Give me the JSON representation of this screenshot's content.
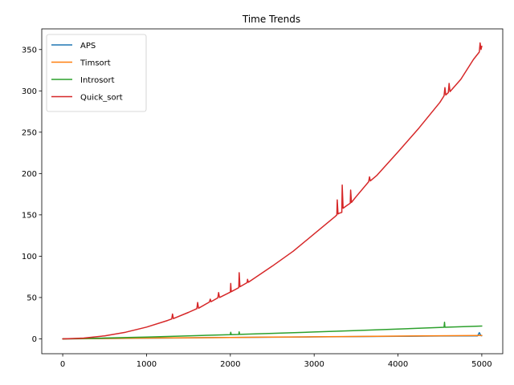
{
  "chart_data": {
    "type": "line",
    "title": "Time Trends",
    "xlabel": "",
    "ylabel": "",
    "xlim": [
      -250,
      5250
    ],
    "ylim": [
      -18,
      375
    ],
    "xticks": [
      0,
      1000,
      2000,
      3000,
      4000,
      5000
    ],
    "yticks": [
      0,
      50,
      100,
      150,
      200,
      250,
      300,
      350
    ],
    "grid": false,
    "legend_position": "top-left",
    "series": [
      {
        "name": "APS",
        "color": "#1f77b4",
        "x": [
          0,
          500,
          1000,
          1500,
          2000,
          2500,
          3000,
          3500,
          4000,
          4500,
          4950,
          4970,
          4990,
          5000
        ],
        "y": [
          0,
          0.3,
          0.8,
          1.2,
          1.6,
          2.0,
          2.4,
          2.8,
          3.1,
          3.4,
          3.6,
          7.5,
          3.8,
          3.7
        ]
      },
      {
        "name": "Timsort",
        "color": "#ff7f0e",
        "x": [
          0,
          500,
          1000,
          1500,
          2000,
          2500,
          3000,
          3500,
          4000,
          4500,
          5000
        ],
        "y": [
          0,
          0.4,
          0.9,
          1.3,
          1.7,
          2.1,
          2.5,
          2.9,
          3.3,
          3.7,
          4.0
        ]
      },
      {
        "name": "Introsort",
        "color": "#2ca02c",
        "x": [
          0,
          500,
          1000,
          1500,
          2000,
          2005,
          2010,
          2100,
          2105,
          2110,
          2500,
          3000,
          3500,
          4000,
          4500,
          4550,
          4555,
          4560,
          5000
        ],
        "y": [
          0,
          1.0,
          2.2,
          3.6,
          5.0,
          8.0,
          5.0,
          5.3,
          8.5,
          5.4,
          6.6,
          8.3,
          10.0,
          11.8,
          13.8,
          14.0,
          20.0,
          14.0,
          15.5
        ]
      },
      {
        "name": "Quick_sort",
        "color": "#d62728",
        "x": [
          0,
          250,
          500,
          750,
          1000,
          1250,
          1300,
          1310,
          1320,
          1500,
          1600,
          1610,
          1620,
          1750,
          1760,
          1770,
          1850,
          1860,
          1870,
          2000,
          2005,
          2010,
          2100,
          2105,
          2115,
          2200,
          2205,
          2215,
          2500,
          2750,
          3000,
          3250,
          3270,
          3275,
          3285,
          3300,
          3330,
          3335,
          3345,
          3400,
          3430,
          3435,
          3445,
          3500,
          3650,
          3660,
          3670,
          3750,
          4000,
          4250,
          4500,
          4550,
          4560,
          4570,
          4600,
          4610,
          4620,
          4750,
          4900,
          4970,
          4980,
          4990,
          5000
        ],
        "y": [
          0,
          0.9,
          3.6,
          8.0,
          14.2,
          22.2,
          24.0,
          30.0,
          24.5,
          32.0,
          36.5,
          44.0,
          37.0,
          44.5,
          48.0,
          45.0,
          49.5,
          56.0,
          50.0,
          56.5,
          67.0,
          57.0,
          62.0,
          80.0,
          63.0,
          68.0,
          72.0,
          68.5,
          88.0,
          106.0,
          127.0,
          148.0,
          150.0,
          168.0,
          151.0,
          152.0,
          153.0,
          186.0,
          158.0,
          162.0,
          164.0,
          180.0,
          165.0,
          172.0,
          190.0,
          196.0,
          191.0,
          198.0,
          226.0,
          255.0,
          286.0,
          294.0,
          304.0,
          295.0,
          298.0,
          309.0,
          299.0,
          314.0,
          338.0,
          347.0,
          358.0,
          350.0,
          354.0
        ]
      }
    ]
  }
}
